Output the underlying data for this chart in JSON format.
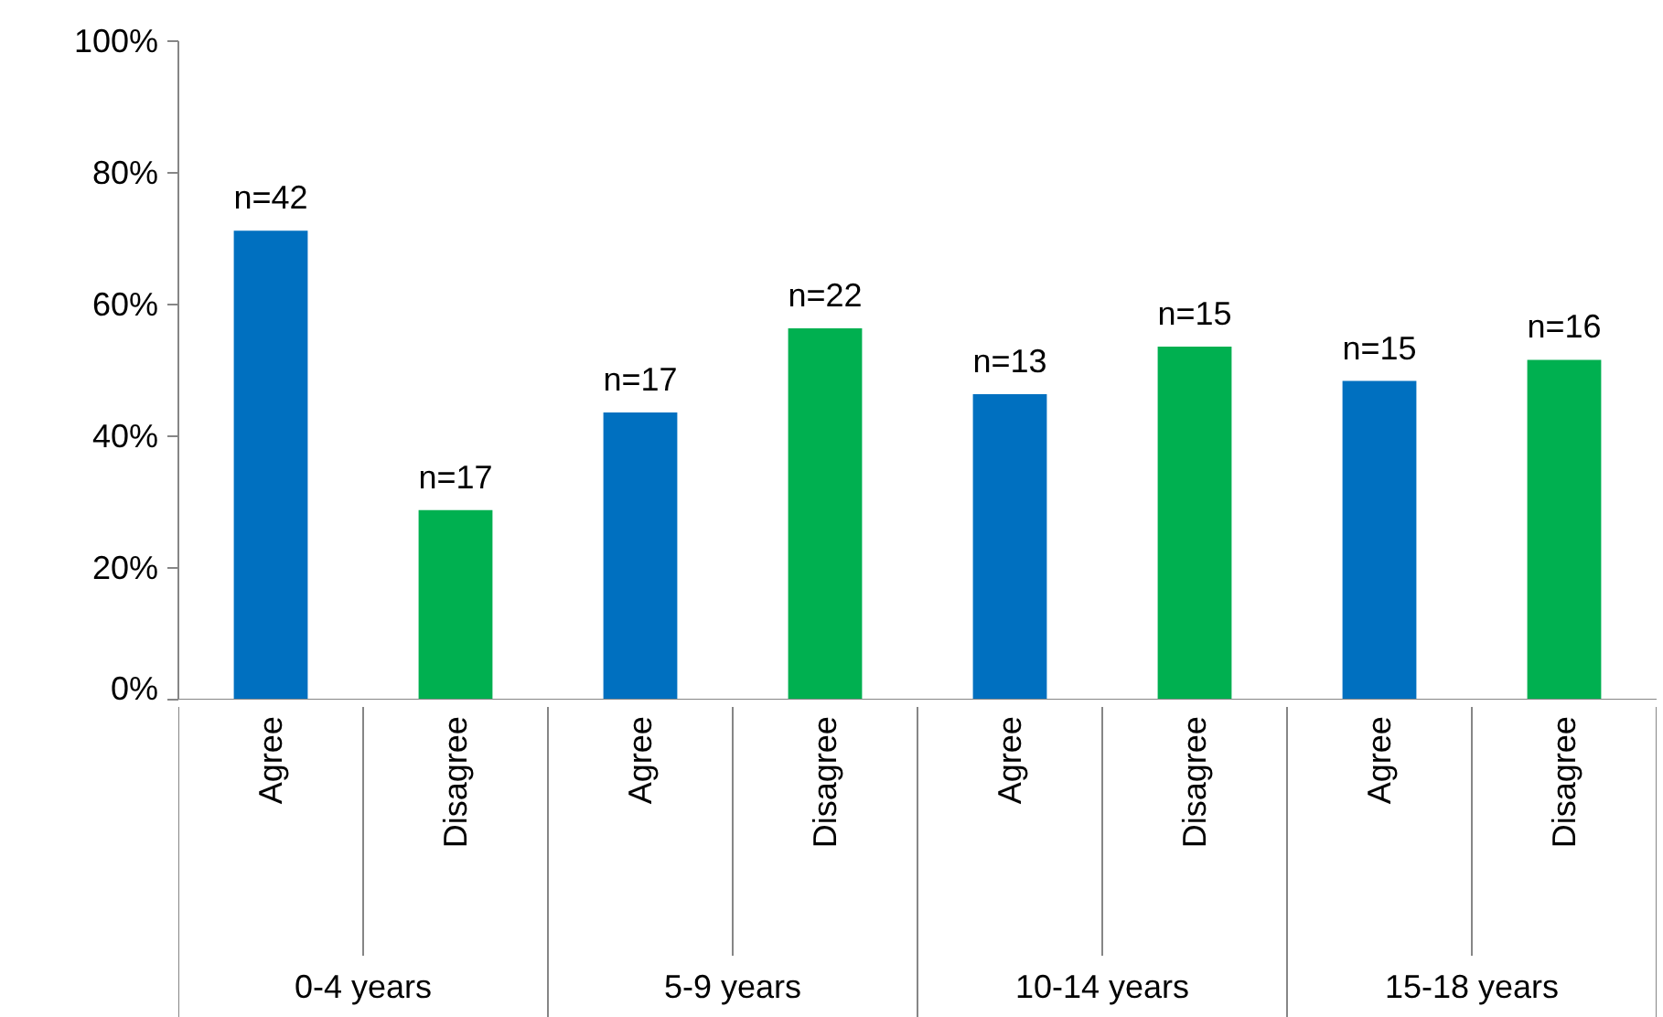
{
  "chart_data": {
    "type": "bar",
    "categories": [
      "Agree",
      "Disagree",
      "Agree",
      "Disagree",
      "Agree",
      "Disagree",
      "Agree",
      "Disagree"
    ],
    "values": [
      71.2,
      28.8,
      43.6,
      56.4,
      46.4,
      53.6,
      48.4,
      51.6
    ],
    "colors": [
      "#0070c0",
      "#00b050",
      "#0070c0",
      "#00b050",
      "#0070c0",
      "#00b050",
      "#0070c0",
      "#00b050"
    ],
    "annotations": [
      "n=42",
      "n=17",
      "n=17",
      "n=22",
      "n=13",
      "n=15",
      "n=15",
      "n=16",
      "0-4 years",
      "5-9 years",
      "10-14 years",
      "15-18 years"
    ],
    "ylim": [
      0,
      100
    ],
    "yticks": [
      {
        "value": 0,
        "label": "0%"
      },
      {
        "value": 20,
        "label": "20%"
      },
      {
        "value": 40,
        "label": "40%"
      },
      {
        "value": 60,
        "label": "60%"
      },
      {
        "value": 80,
        "label": "80%"
      },
      {
        "value": 100,
        "label": "100%"
      }
    ]
  }
}
